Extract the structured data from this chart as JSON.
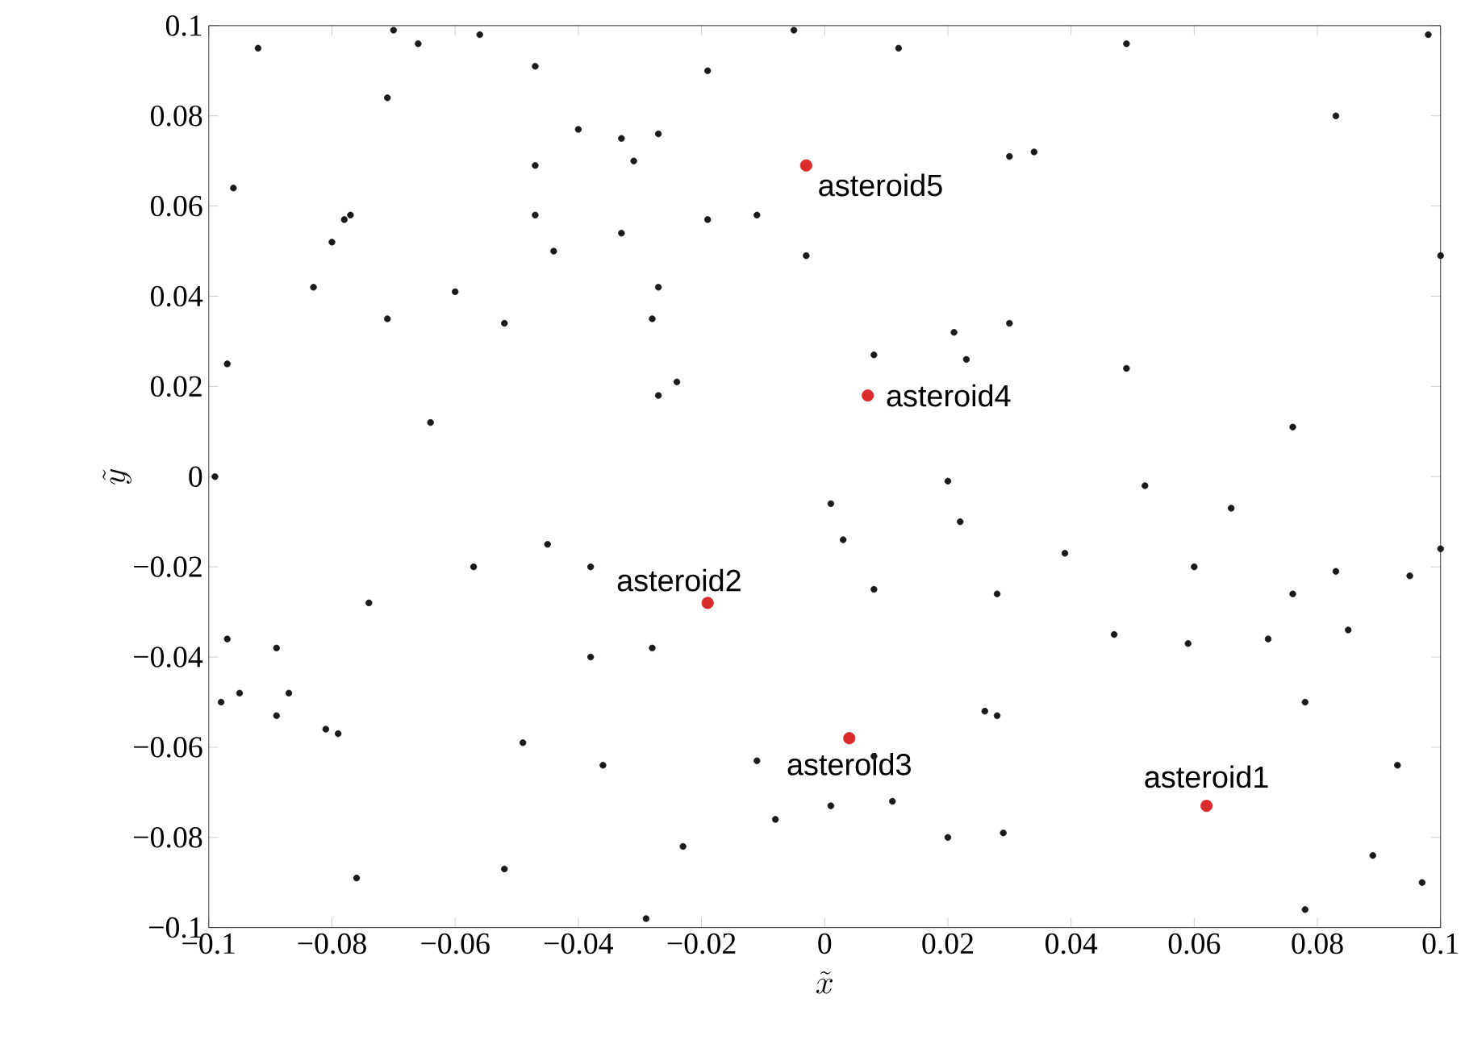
{
  "chart_data": {
    "type": "scatter",
    "xlabel": "\\tilde{x}",
    "ylabel": "\\tilde{y}",
    "xlim": [
      -0.1,
      0.1
    ],
    "ylim": [
      -0.1,
      0.1
    ],
    "xticks": [
      {
        "value": -0.1,
        "label": "−0.1"
      },
      {
        "value": -0.08,
        "label": "−0.08"
      },
      {
        "value": -0.06,
        "label": "−0.06"
      },
      {
        "value": -0.04,
        "label": "−0.04"
      },
      {
        "value": -0.02,
        "label": "−0.02"
      },
      0,
      0.02,
      0.04,
      0.06,
      0.08,
      0.1
    ],
    "yticks": [
      {
        "value": -0.1,
        "label": "−0.1"
      },
      {
        "value": -0.08,
        "label": "−0.08"
      },
      {
        "value": -0.06,
        "label": "−0.06"
      },
      {
        "value": -0.04,
        "label": "−0.04"
      },
      {
        "value": -0.02,
        "label": "−0.02"
      },
      0,
      0.02,
      0.04,
      0.06,
      0.08,
      0.1
    ],
    "grid": false,
    "series": [
      {
        "color": "#1a1a1a",
        "x": [
          -0.092,
          -0.07,
          -0.066,
          -0.056,
          -0.047,
          -0.071,
          -0.005,
          0.012,
          0.049,
          0.098,
          -0.019,
          0.083,
          -0.04,
          -0.033,
          -0.027,
          -0.031,
          -0.047,
          0.03,
          0.034,
          -0.096,
          -0.047,
          -0.078,
          -0.077,
          -0.019,
          -0.011,
          -0.08,
          -0.044,
          -0.033,
          -0.003,
          0.1,
          -0.083,
          -0.06,
          -0.027,
          -0.071,
          -0.052,
          -0.028,
          0.021,
          0.03,
          0.008,
          0.023,
          -0.097,
          0.049,
          -0.024,
          -0.027,
          -0.064,
          0.076,
          -0.099,
          0.02,
          0.052,
          0.001,
          0.066,
          0.022,
          0.003,
          -0.045,
          0.039,
          0.1,
          -0.057,
          -0.038,
          0.06,
          0.083,
          0.095,
          -0.074,
          0.008,
          0.028,
          0.076,
          -0.097,
          0.047,
          0.059,
          0.072,
          0.085,
          -0.089,
          -0.028,
          -0.038,
          -0.095,
          -0.087,
          -0.098,
          0.078,
          -0.089,
          0.026,
          0.028,
          -0.081,
          -0.079,
          -0.049,
          0.008,
          -0.011,
          -0.036,
          0.093,
          0.011,
          0.001,
          -0.008,
          0.02,
          0.029,
          -0.023,
          0.089,
          -0.052,
          -0.076,
          0.097,
          0.078,
          -0.029
        ],
        "values": [
          0.095,
          0.099,
          0.096,
          0.098,
          0.091,
          0.084,
          0.099,
          0.095,
          0.096,
          0.098,
          0.09,
          0.08,
          0.077,
          0.075,
          0.076,
          0.07,
          0.069,
          0.071,
          0.072,
          0.064,
          0.058,
          0.057,
          0.058,
          0.057,
          0.058,
          0.052,
          0.05,
          0.054,
          0.049,
          0.049,
          0.042,
          0.041,
          0.042,
          0.035,
          0.034,
          0.035,
          0.032,
          0.034,
          0.027,
          0.026,
          0.025,
          0.024,
          0.021,
          0.018,
          0.012,
          0.011,
          0.0,
          -0.001,
          -0.002,
          -0.006,
          -0.007,
          -0.01,
          -0.014,
          -0.015,
          -0.017,
          -0.016,
          -0.02,
          -0.02,
          -0.02,
          -0.021,
          -0.022,
          -0.028,
          -0.025,
          -0.026,
          -0.026,
          -0.036,
          -0.035,
          -0.037,
          -0.036,
          -0.034,
          -0.038,
          -0.038,
          -0.04,
          -0.048,
          -0.048,
          -0.05,
          -0.05,
          -0.053,
          -0.052,
          -0.053,
          -0.056,
          -0.057,
          -0.059,
          -0.062,
          -0.063,
          -0.064,
          -0.064,
          -0.072,
          -0.073,
          -0.076,
          -0.08,
          -0.079,
          -0.082,
          -0.084,
          -0.087,
          -0.089,
          -0.09,
          -0.096,
          -0.098
        ]
      },
      {
        "color": "#d92b2b",
        "x": [
          0.062,
          -0.019,
          0.004,
          0.007,
          -0.003
        ],
        "values": [
          -0.073,
          -0.028,
          -0.058,
          0.018,
          0.069
        ]
      }
    ],
    "annotations": [
      {
        "text": "asteroid1",
        "x": 0.062,
        "y": -0.073
      },
      {
        "text": "asteroid2",
        "x": -0.019,
        "y": -0.028
      },
      {
        "text": "asteroid3",
        "x": 0.004,
        "y": -0.058
      },
      {
        "text": "asteroid4",
        "x": 0.007,
        "y": 0.018
      },
      {
        "text": "asteroid5",
        "x": -0.003,
        "y": 0.069
      }
    ]
  }
}
